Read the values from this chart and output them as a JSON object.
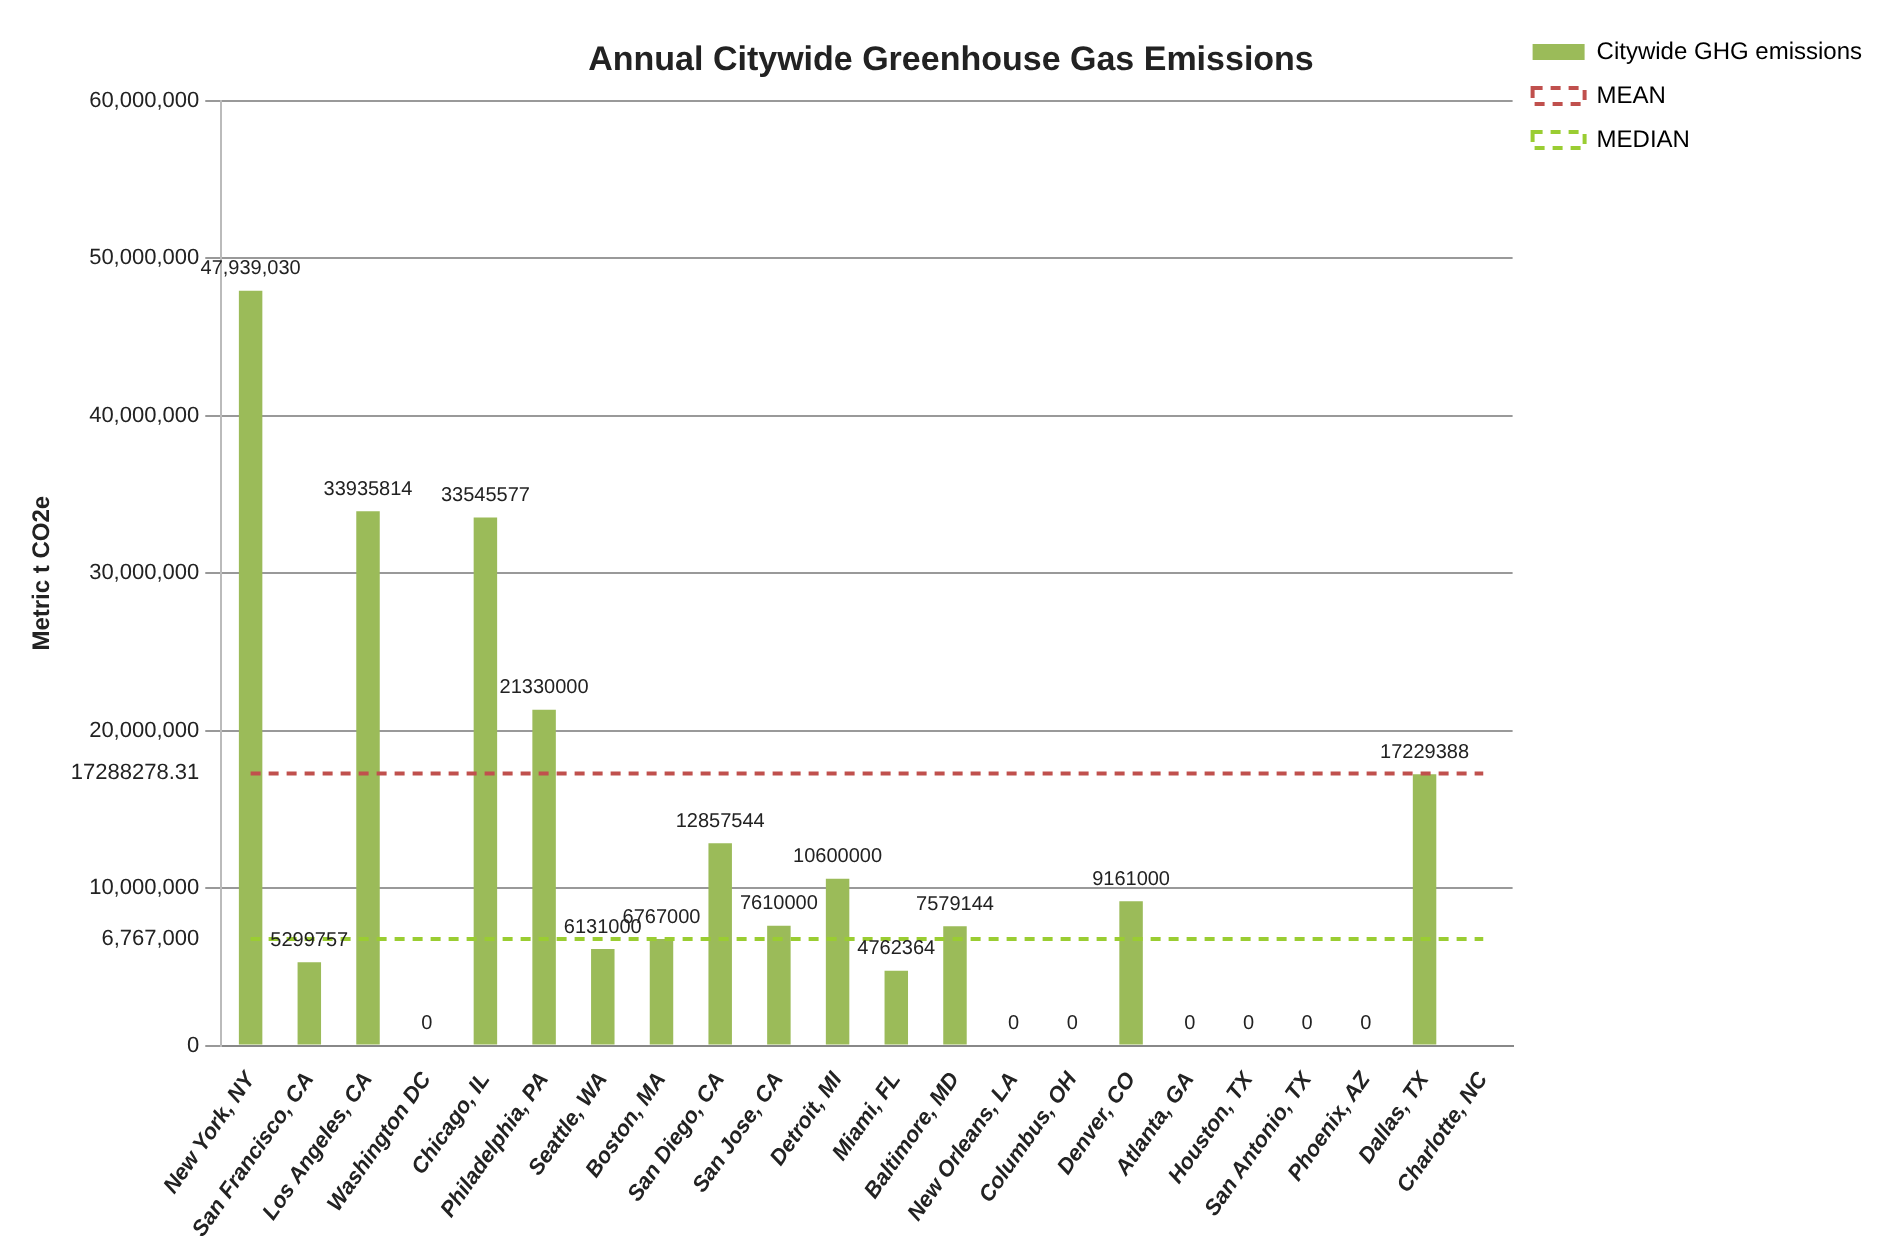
{
  "chart_data": {
    "type": "bar",
    "title": "Annual Citywide Greenhouse Gas Emissions",
    "ylabel": "Metric t CO2e",
    "categories": [
      "New York, NY",
      "San Francisco, CA",
      "Los Angeles, CA",
      "Washington DC",
      "Chicago, IL",
      "Philadelphia, PA",
      "Seattle, WA",
      "Boston, MA",
      "San Diego, CA",
      "San Jose, CA",
      "Detroit, MI",
      "Miami, FL",
      "Baltimore, MD",
      "New Orleans, LA",
      "Columbus, OH",
      "Denver, CO",
      "Atlanta, GA",
      "Houston, TX",
      "San Antonio, TX",
      "Phoenix, AZ",
      "Dallas, TX",
      "Charlotte, NC"
    ],
    "series": [
      {
        "name": "Citywide GHG emissions",
        "color": "#9bbb59",
        "values": [
          47939030,
          5299757,
          33935814,
          0,
          33545577,
          21330000,
          6131000,
          6767000,
          12857544,
          7610000,
          10600000,
          4762364,
          7579144,
          0,
          0,
          9161000,
          0,
          0,
          0,
          0,
          17229388,
          null
        ],
        "value_labels": [
          "47,939,030",
          "5299757",
          "33935814",
          "0",
          "33545577",
          "21330000",
          "6131000",
          "6767000",
          "12857544",
          "7610000",
          "10600000",
          "4762364",
          "7579144",
          "0",
          "0",
          "9161000",
          "0",
          "0",
          "0",
          "0",
          "17229388",
          null
        ]
      },
      {
        "name": "MEAN",
        "type": "line",
        "color": "#c0504d",
        "line_style": "dashed",
        "marker": "none",
        "values": [
          17288278.31,
          17288278.31,
          17288278.31,
          17288278.31,
          17288278.31,
          17288278.31,
          17288278.31,
          17288278.31,
          17288278.31,
          17288278.31,
          17288278.31,
          17288278.31,
          17288278.31,
          17288278.31,
          17288278.31,
          17288278.31,
          17288278.31,
          17288278.31,
          17288278.31,
          17288278.31,
          17288278.31,
          17288278.31
        ]
      },
      {
        "name": "MEDIAN",
        "type": "line",
        "color": "#9acd32",
        "line_style": "dashed",
        "marker": "none",
        "values": [
          6767000,
          6767000,
          6767000,
          6767000,
          6767000,
          6767000,
          6767000,
          6767000,
          6767000,
          6767000,
          6767000,
          6767000,
          6767000,
          6767000,
          6767000,
          6767000,
          6767000,
          6767000,
          6767000,
          6767000,
          6767000,
          6767000
        ]
      }
    ],
    "ylim": [
      0,
      60000000
    ],
    "yticks": [
      {
        "value": 0,
        "label": "0"
      },
      {
        "value": 6767000,
        "label": "6,767,000"
      },
      {
        "value": 10000000,
        "label": "10,000,000"
      },
      {
        "value": 17288278.31,
        "label": "17288278.31"
      },
      {
        "value": 20000000,
        "label": "20,000,000"
      },
      {
        "value": 30000000,
        "label": "30,000,000"
      },
      {
        "value": 40000000,
        "label": "40,000,000"
      },
      {
        "value": 50000000,
        "label": "50,000,000"
      },
      {
        "value": 60000000,
        "label": "60,000,000"
      }
    ],
    "grid": "y",
    "legend": "top right"
  }
}
